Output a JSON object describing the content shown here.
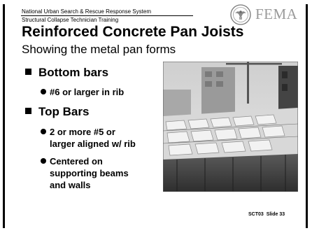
{
  "header": {
    "org_line": "National Urban Search & Rescue Response System",
    "course_line": "Structural Collapse Technician Training",
    "brand": "FEMA"
  },
  "slide": {
    "title": "Reinforced Concrete Pan Joists",
    "subtitle": "Showing the metal pan forms",
    "bullets": [
      {
        "label": "Bottom bars",
        "sub": [
          {
            "lines": [
              "#6 or larger in rib"
            ]
          }
        ]
      },
      {
        "label": "Top Bars",
        "sub": [
          {
            "lines": [
              "2 or more #5 or",
              "larger aligned w/ rib"
            ]
          },
          {
            "lines": [
              "Centered on",
              "supporting beams",
              "and walls"
            ]
          }
        ]
      }
    ],
    "photo_icon": "construction-photo-pan-forms"
  },
  "footer": {
    "code": "SCT03",
    "slide_label": "Slide 33"
  },
  "colors": {
    "text": "#000000",
    "brand_gray": "#9a9a9a",
    "background": "#ffffff"
  }
}
